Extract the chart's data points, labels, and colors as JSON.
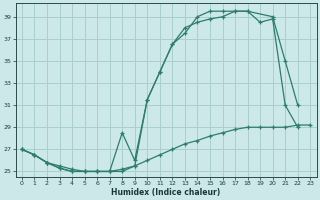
{
  "xlabel": "Humidex (Indice chaleur)",
  "bg_color": "#cce8e8",
  "line_color": "#2d7d6e",
  "grid_color": "#aacfcf",
  "xlim": [
    -0.5,
    23.5
  ],
  "ylim": [
    24.5,
    40.2
  ],
  "yticks": [
    25,
    27,
    29,
    31,
    33,
    35,
    37,
    39
  ],
  "xticks": [
    0,
    1,
    2,
    3,
    4,
    5,
    6,
    7,
    8,
    9,
    10,
    11,
    12,
    13,
    14,
    15,
    16,
    17,
    18,
    19,
    20,
    21,
    22,
    23
  ],
  "line1_x": [
    0,
    1,
    2,
    3,
    4,
    5,
    6,
    7,
    8,
    9,
    10,
    11,
    12,
    13,
    14,
    15,
    16,
    17,
    18,
    20,
    21,
    22
  ],
  "line1_y": [
    27.0,
    26.5,
    25.8,
    25.3,
    25.0,
    25.0,
    25.0,
    25.0,
    28.5,
    26.0,
    31.5,
    34.0,
    36.5,
    37.5,
    39.0,
    39.5,
    39.5,
    39.5,
    39.5,
    39.0,
    35.0,
    31.0
  ],
  "line2_x": [
    0,
    1,
    2,
    3,
    4,
    5,
    6,
    7,
    8,
    9,
    10,
    11,
    12,
    13,
    14,
    15,
    16,
    17,
    18,
    19,
    20,
    21,
    22
  ],
  "line2_y": [
    27.0,
    26.5,
    25.8,
    25.3,
    25.0,
    25.0,
    25.0,
    25.0,
    25.0,
    25.5,
    31.5,
    34.0,
    36.5,
    38.0,
    38.5,
    38.8,
    39.0,
    39.5,
    39.5,
    38.5,
    38.8,
    31.0,
    29.0
  ],
  "line3_x": [
    0,
    1,
    2,
    3,
    4,
    5,
    6,
    7,
    8,
    9,
    10,
    11,
    12,
    13,
    14,
    15,
    16,
    17,
    18,
    19,
    20,
    21,
    22,
    23
  ],
  "line3_y": [
    27.0,
    26.5,
    25.8,
    25.5,
    25.2,
    25.0,
    25.0,
    25.0,
    25.2,
    25.5,
    26.0,
    26.5,
    27.0,
    27.5,
    27.8,
    28.2,
    28.5,
    28.8,
    29.0,
    29.0,
    29.0,
    29.0,
    29.2,
    29.2
  ]
}
